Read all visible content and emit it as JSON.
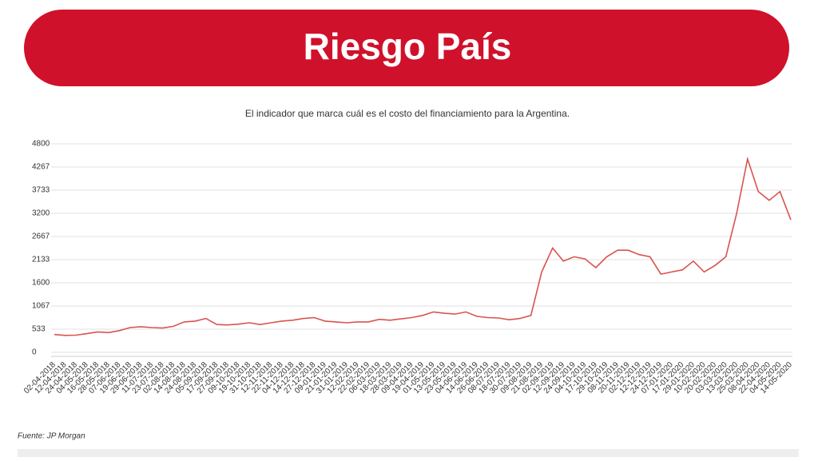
{
  "chart_data": {
    "type": "line",
    "title": "Riesgo País",
    "subtitle": "El indicador que marca cuál es el costo del financiamiento para la Argentina.",
    "source": "Fuente: JP Morgan",
    "color": "#d9534f",
    "grid": true,
    "categories": [
      "02-04-2018",
      "12-04-2018",
      "24-04-2018",
      "04-05-2018",
      "16-05-2018",
      "28-05-2018",
      "07-06-2018",
      "19-06-2018",
      "29-06-2018",
      "11-07-2018",
      "23-07-2018",
      "02-08-2018",
      "14-08-2018",
      "24-08-2018",
      "05-09-2018",
      "17-09-2018",
      "27-09-2018",
      "09-10-2018",
      "19-10-2018",
      "31-10-2018",
      "12-11-2018",
      "22-11-2018",
      "04-12-2018",
      "14-12-2018",
      "27-12-2018",
      "09-01-2019",
      "21-01-2019",
      "31-01-2019",
      "12-02-2019",
      "22-02-2019",
      "06-03-2019",
      "18-03-2019",
      "28-03-2019",
      "09-04-2019",
      "19-04-2019",
      "01-05-2019",
      "13-05-2019",
      "23-05-2019",
      "04-06-2019",
      "14-06-2019",
      "26-06-2019",
      "08-07-2019",
      "18-07-2019",
      "30-07-2019",
      "09-08-2019",
      "21-08-2019",
      "02-09-2019",
      "12-09-2019",
      "24-09-2019",
      "04-10-2019",
      "17-10-2019",
      "29-10-2019",
      "08-11-2019",
      "20-11-2019",
      "02-12-2019",
      "12-12-2019",
      "24-12-2019",
      "07-01-2020",
      "17-01-2020",
      "29-01-2020",
      "10-02-2020",
      "20-02-2020",
      "03-03-2020",
      "13-03-2020",
      "25-03-2020",
      "08-04-2020",
      "22-04-2020",
      "04-05-2020",
      "14-05-2020"
    ],
    "values": [
      410,
      390,
      395,
      430,
      470,
      455,
      500,
      570,
      590,
      570,
      560,
      600,
      700,
      720,
      780,
      640,
      630,
      650,
      680,
      640,
      680,
      720,
      740,
      780,
      800,
      720,
      700,
      680,
      700,
      700,
      760,
      740,
      770,
      800,
      850,
      930,
      900,
      880,
      930,
      830,
      800,
      790,
      750,
      780,
      850,
      1850,
      2400,
      2100,
      2200,
      2150,
      1950,
      2200,
      2350,
      2350,
      2250,
      2200,
      1800,
      1850,
      1900,
      2100,
      1850,
      2000,
      2200,
      3200,
      4450,
      3700,
      3500,
      3700,
      3050
    ],
    "ylim": [
      0,
      4800
    ],
    "yticks": [
      0,
      533,
      1067,
      1600,
      2133,
      2667,
      3200,
      3733,
      4267,
      4800
    ]
  }
}
